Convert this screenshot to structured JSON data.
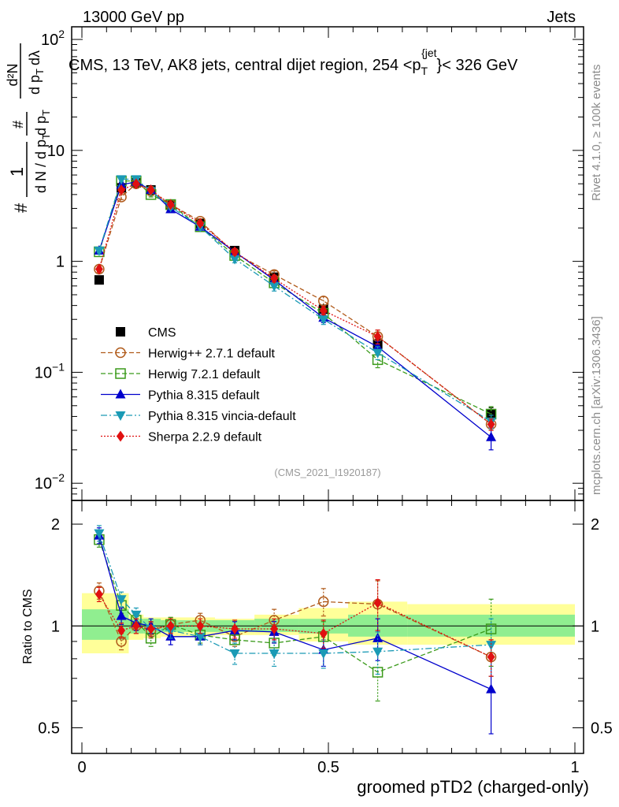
{
  "header": {
    "left": "13000 GeV pp",
    "right": "Jets"
  },
  "plot_title": {
    "prefix": "CMS, 13 TeV, AK8 jets, central dijet region, 254 <p",
    "sub": "T",
    "sup": "{jet",
    "suffix": "}< 326 GeV"
  },
  "ylabel_main": {
    "hash": "#",
    "frac_num": "1",
    "frac_den_a": "d N / d p",
    "frac_den_sub": "T",
    "frac_num2_hash": "#",
    "dpt_a": "d p",
    "dpt_sub": "T",
    "d2n": "d²N",
    "dl_a": "d p",
    "dl_sub": "T",
    "dl_b": "dλ"
  },
  "ylabel_ratio": "Ratio to CMS",
  "xlabel": "groomed pTD2 (charged-only)",
  "side_rivet": "Rivet 4.1.0, ≥ 100k events",
  "side_mcplots": "mcplots.cern.ch [arXiv:1306.3436]",
  "analysis_ref": "(CMS_2021_I1920187)",
  "colors": {
    "cms": "#000000",
    "herwigpp": "#b05a1a",
    "herwig7": "#3a9a1a",
    "pythia": "#0000cc",
    "vincia": "#1a9ab5",
    "sherpa": "#e01010",
    "band_inner": "#90ee90",
    "band_outer": "#ffff99"
  },
  "chart_data": [
    {
      "type": "line",
      "panel": "main",
      "yscale": "log",
      "xlim": [
        0,
        1
      ],
      "ylim": [
        0.007,
        130
      ],
      "ytick_labels": [
        {
          "base": "10",
          "exp": "−2",
          "value": 0.01
        },
        {
          "base": "10",
          "exp": "−1",
          "value": 0.1
        },
        {
          "base": "1",
          "exp": "",
          "value": 1
        },
        {
          "base": "10",
          "exp": "",
          "value": 10
        },
        {
          "base": "10",
          "exp": "2",
          "value": 100
        }
      ],
      "x": [
        0.035,
        0.08,
        0.11,
        0.14,
        0.18,
        0.24,
        0.31,
        0.39,
        0.49,
        0.6,
        0.83
      ],
      "series": [
        {
          "name": "CMS",
          "key": "cms",
          "marker": "square",
          "line": "none",
          "values": [
            0.68,
            4.6,
            5.1,
            4.4,
            3.2,
            2.2,
            1.25,
            0.72,
            0.37,
            0.18,
            0.042
          ],
          "errors": [
            0.03,
            0.2,
            0.2,
            0.2,
            0.15,
            0.1,
            0.07,
            0.05,
            0.03,
            0.02,
            0.006
          ]
        },
        {
          "name": "Herwig++ 2.7.1 default",
          "key": "herwigpp",
          "marker": "circle-open",
          "line": "dashed",
          "values": [
            0.85,
            3.8,
            5.0,
            4.3,
            3.25,
            2.3,
            1.18,
            0.76,
            0.44,
            0.21,
            0.034
          ],
          "errors": [
            0.05,
            0.2,
            0.25,
            0.2,
            0.15,
            0.12,
            0.08,
            0.06,
            0.04,
            0.03,
            0.004
          ]
        },
        {
          "name": "Herwig 7.2.1 default",
          "key": "herwig7",
          "marker": "square-open",
          "line": "dashed",
          "values": [
            1.22,
            5.3,
            5.3,
            4.0,
            3.25,
            2.05,
            1.13,
            0.64,
            0.34,
            0.13,
            0.042
          ],
          "errors": [
            0.06,
            0.25,
            0.25,
            0.2,
            0.15,
            0.1,
            0.08,
            0.06,
            0.04,
            0.02,
            0.007
          ]
        },
        {
          "name": "Pythia 8.315 default",
          "key": "pythia",
          "marker": "triangle-up",
          "line": "solid",
          "values": [
            1.25,
            4.9,
            5.2,
            4.4,
            2.95,
            2.05,
            1.22,
            0.68,
            0.31,
            0.17,
            0.026
          ],
          "errors": [
            0.06,
            0.25,
            0.25,
            0.2,
            0.15,
            0.1,
            0.08,
            0.05,
            0.03,
            0.02,
            0.006
          ]
        },
        {
          "name": "Pythia 8.315 vincia-default",
          "key": "vincia",
          "marker": "triangle-down",
          "line": "dashdot",
          "values": [
            1.25,
            5.5,
            5.5,
            4.3,
            3.1,
            2.05,
            1.05,
            0.6,
            0.3,
            0.15,
            0.036
          ],
          "errors": [
            0.06,
            0.25,
            0.25,
            0.2,
            0.15,
            0.1,
            0.08,
            0.06,
            0.03,
            0.02,
            0.005
          ]
        },
        {
          "name": "Sherpa 2.2.9 default",
          "key": "sherpa",
          "marker": "diamond",
          "line": "dotted",
          "values": [
            0.85,
            4.4,
            5.0,
            4.4,
            3.25,
            2.2,
            1.22,
            0.7,
            0.36,
            0.21,
            0.034
          ],
          "errors": [
            0.05,
            0.2,
            0.25,
            0.2,
            0.15,
            0.1,
            0.08,
            0.05,
            0.03,
            0.03,
            0.004
          ]
        }
      ],
      "legend_position": "middle-left"
    },
    {
      "type": "line",
      "panel": "ratio",
      "yscale": "log",
      "xlim": [
        0,
        1
      ],
      "ylim": [
        0.42,
        2.35
      ],
      "ytick_labels": [
        {
          "label": "0.5",
          "value": 0.5
        },
        {
          "label": "1",
          "value": 1
        },
        {
          "label": "2",
          "value": 2
        }
      ],
      "xtick_labels": [
        {
          "label": "0",
          "value": 0
        },
        {
          "label": "0.5",
          "value": 0.5
        },
        {
          "label": "1",
          "value": 1
        }
      ],
      "reference_line": 1,
      "bands": {
        "edges": [
          0.0,
          0.07,
          0.095,
          0.125,
          0.16,
          0.21,
          0.27,
          0.35,
          0.44,
          0.54,
          0.66,
          1.0
        ],
        "inner": [
          [
            0.91,
            1.12
          ],
          [
            0.91,
            1.12
          ],
          [
            0.95,
            1.05
          ],
          [
            0.95,
            1.05
          ],
          [
            0.96,
            1.04
          ],
          [
            0.96,
            1.04
          ],
          [
            0.96,
            1.04
          ],
          [
            0.96,
            1.05
          ],
          [
            0.95,
            1.05
          ],
          [
            0.93,
            1.08
          ],
          [
            0.93,
            1.08
          ]
        ],
        "outer": [
          [
            0.83,
            1.25
          ],
          [
            0.83,
            1.25
          ],
          [
            0.91,
            1.08
          ],
          [
            0.92,
            1.06
          ],
          [
            0.93,
            1.06
          ],
          [
            0.93,
            1.06
          ],
          [
            0.94,
            1.05
          ],
          [
            0.94,
            1.08
          ],
          [
            0.9,
            1.13
          ],
          [
            0.88,
            1.18
          ],
          [
            0.88,
            1.16
          ]
        ]
      },
      "x": [
        0.035,
        0.08,
        0.11,
        0.14,
        0.18,
        0.24,
        0.31,
        0.39,
        0.49,
        0.6,
        0.83
      ],
      "series": [
        {
          "key": "herwigpp",
          "values": [
            1.27,
            0.9,
            1.0,
            0.97,
            1.01,
            1.04,
            0.93,
            1.04,
            1.18,
            1.16,
            0.81
          ],
          "errors": [
            0.07,
            0.05,
            0.05,
            0.05,
            0.05,
            0.05,
            0.06,
            0.08,
            0.11,
            0.2,
            0.1
          ]
        },
        {
          "key": "herwig7",
          "values": [
            1.8,
            1.15,
            1.04,
            0.92,
            1.01,
            0.94,
            0.91,
            0.89,
            0.93,
            0.73,
            0.98
          ],
          "errors": [
            0.09,
            0.06,
            0.05,
            0.05,
            0.05,
            0.05,
            0.06,
            0.07,
            0.1,
            0.13,
            0.22
          ]
        },
        {
          "key": "pythia",
          "values": [
            1.85,
            1.07,
            1.02,
            1.0,
            0.93,
            0.93,
            0.97,
            0.96,
            0.85,
            0.92,
            0.65
          ],
          "errors": [
            0.1,
            0.06,
            0.05,
            0.05,
            0.05,
            0.05,
            0.06,
            0.07,
            0.09,
            0.13,
            0.17
          ]
        },
        {
          "key": "vincia",
          "values": [
            1.88,
            1.2,
            1.08,
            0.98,
            0.97,
            0.93,
            0.83,
            0.83,
            0.83,
            0.84,
            0.88
          ],
          "errors": [
            0.1,
            0.06,
            0.05,
            0.05,
            0.05,
            0.05,
            0.06,
            0.07,
            0.08,
            0.12,
            0.17
          ]
        },
        {
          "key": "sherpa",
          "values": [
            1.24,
            0.97,
            1.0,
            0.98,
            1.0,
            1.0,
            0.98,
            0.98,
            0.95,
            1.17,
            0.81
          ],
          "errors": [
            0.06,
            0.05,
            0.05,
            0.05,
            0.05,
            0.05,
            0.06,
            0.07,
            0.09,
            0.2,
            0.1
          ]
        }
      ]
    }
  ]
}
